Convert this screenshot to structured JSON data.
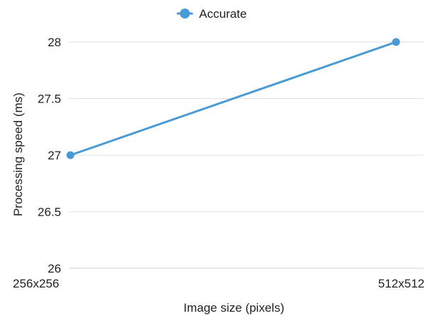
{
  "chart_data": {
    "type": "line",
    "categories": [
      "256x256",
      "512x512"
    ],
    "series": [
      {
        "name": "Accurate",
        "values": [
          27,
          28
        ],
        "color": "#4a9bd5"
      }
    ],
    "xlabel": "Image size (pixels)",
    "ylabel": "Processing speed (ms)",
    "ylim": [
      26,
      28
    ],
    "yticks": [
      "26",
      "26.5",
      "27",
      "27.5",
      "28"
    ],
    "grid": true,
    "legend_position": "top-center"
  }
}
